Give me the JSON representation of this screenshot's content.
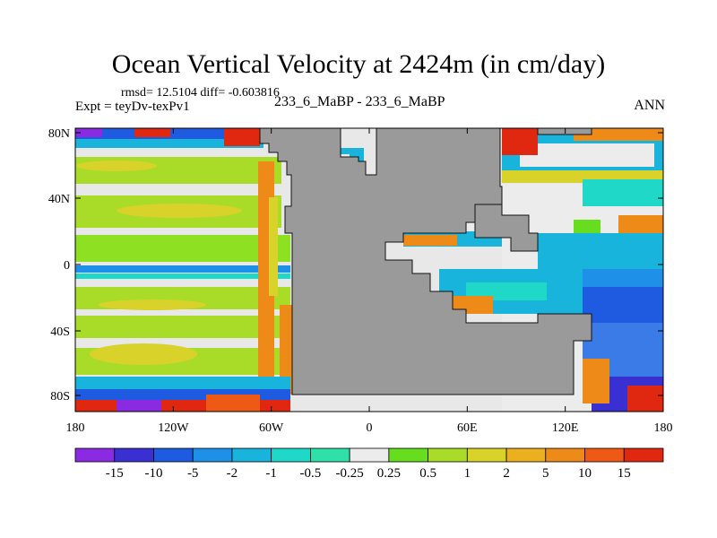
{
  "title": "Ocean Vertical Velocity at 2424m (in cm/day)",
  "stats": "rmsd= 12.5104 diff= -0.603816",
  "expt": "Expt = teyDv-texPv1",
  "cases": "233_6_MaBP - 233_6_MaBP",
  "season": "ANN",
  "axes": {
    "lat_labels": [
      "80N",
      "40N",
      "0",
      "40S",
      "80S"
    ],
    "lon_labels": [
      "180",
      "120W",
      "60W",
      "0",
      "60E",
      "120E",
      "180"
    ]
  },
  "colorbar": {
    "labels": [
      "-15",
      "-10",
      "-5",
      "-2",
      "-1",
      "-0.5",
      "-0.25",
      "0.25",
      "0.5",
      "1",
      "2",
      "5",
      "10",
      "15"
    ],
    "colors": [
      "#8a2be2",
      "#3a2fd0",
      "#1f5be0",
      "#1e90e8",
      "#18b4dc",
      "#20d8c8",
      "#2fe0a8",
      "#ececec",
      "#66dd1e",
      "#a8dc28",
      "#d8d22a",
      "#eab020",
      "#ee8a18",
      "#ee5a16",
      "#e02810"
    ]
  },
  "colors": {
    "land": "#9a9a9a",
    "coast_line": "#111111"
  }
}
